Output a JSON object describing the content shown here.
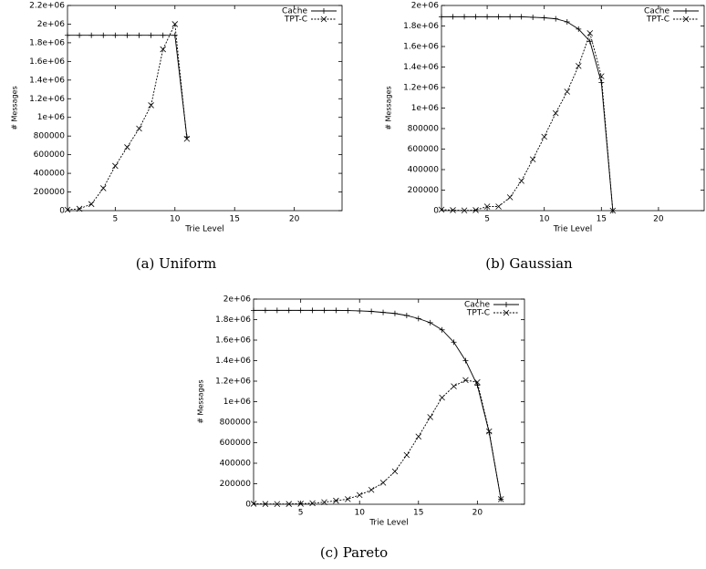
{
  "chart_data": [
    {
      "type": "line",
      "caption": "(a) Uniform",
      "x_label": "Trie Level",
      "y_label": "# Messages",
      "legend": "top-right",
      "x": [
        1,
        2,
        3,
        4,
        5,
        6,
        7,
        8,
        9,
        10,
        11
      ],
      "series": [
        {
          "name": "Cache",
          "color": "#000000",
          "values": [
            1880000,
            1880000,
            1880000,
            1880000,
            1880000,
            1880000,
            1880000,
            1880000,
            1880000,
            1880000,
            790000
          ]
        },
        {
          "name": "TPT-C",
          "color": "#000000",
          "values": [
            10000,
            20000,
            70000,
            240000,
            480000,
            680000,
            880000,
            1130000,
            1730000,
            2000000,
            770000
          ]
        }
      ],
      "xlim": [
        1,
        24
      ],
      "xticks": [
        5,
        10,
        15,
        20
      ],
      "ylim": [
        0,
        2200000
      ],
      "yticks": [
        0,
        200000,
        400000,
        600000,
        800000,
        {
          "value": 1000000,
          "label": "1e+06"
        },
        {
          "value": 1200000,
          "label": "1.2e+06"
        },
        {
          "value": 1400000,
          "label": "1.4e+06"
        },
        {
          "value": 1600000,
          "label": "1.6e+06"
        },
        {
          "value": 1800000,
          "label": "1.8e+06"
        },
        {
          "value": 2000000,
          "label": "2e+06"
        },
        {
          "value": 2200000,
          "label": "2.2e+06"
        }
      ]
    },
    {
      "type": "line",
      "caption": "(b) Gaussian",
      "x_label": "Trie Level",
      "y_label": "# Messages",
      "legend": "top-right",
      "x": [
        1,
        2,
        3,
        4,
        5,
        6,
        7,
        8,
        9,
        10,
        11,
        12,
        13,
        14,
        15,
        16
      ],
      "series": [
        {
          "name": "Cache",
          "color": "#000000",
          "values": [
            1890000,
            1890000,
            1890000,
            1890000,
            1890000,
            1890000,
            1890000,
            1890000,
            1885000,
            1880000,
            1870000,
            1840000,
            1770000,
            1650000,
            1250000,
            0
          ]
        },
        {
          "name": "TPT-C",
          "color": "#000000",
          "values": [
            10000,
            5000,
            2000,
            5000,
            40000,
            40000,
            130000,
            290000,
            500000,
            720000,
            950000,
            1160000,
            1410000,
            1730000,
            1310000,
            0
          ]
        }
      ],
      "xlim": [
        1,
        24
      ],
      "xticks": [
        5,
        10,
        15,
        20
      ],
      "ylim": [
        0,
        2000000
      ],
      "yticks": [
        0,
        200000,
        400000,
        600000,
        800000,
        {
          "value": 1000000,
          "label": "1e+06"
        },
        {
          "value": 1200000,
          "label": "1.2e+06"
        },
        {
          "value": 1400000,
          "label": "1.4e+06"
        },
        {
          "value": 1600000,
          "label": "1.6e+06"
        },
        {
          "value": 1800000,
          "label": "1.8e+06"
        },
        {
          "value": 2000000,
          "label": "2e+06"
        }
      ]
    },
    {
      "type": "line",
      "caption": "(c) Pareto",
      "x_label": "Trie Level",
      "y_label": "# Messages",
      "legend": "top-right",
      "x": [
        1,
        2,
        3,
        4,
        5,
        6,
        7,
        8,
        9,
        10,
        11,
        12,
        13,
        14,
        15,
        16,
        17,
        18,
        19,
        20,
        21,
        22
      ],
      "series": [
        {
          "name": "Cache",
          "color": "#000000",
          "values": [
            1890000,
            1890000,
            1890000,
            1890000,
            1890000,
            1890000,
            1890000,
            1890000,
            1888000,
            1885000,
            1880000,
            1870000,
            1860000,
            1840000,
            1810000,
            1770000,
            1700000,
            1580000,
            1400000,
            1160000,
            700000,
            50000
          ]
        },
        {
          "name": "TPT-C",
          "color": "#000000",
          "values": [
            5000,
            3000,
            2000,
            3000,
            5000,
            10000,
            20000,
            35000,
            50000,
            90000,
            140000,
            210000,
            320000,
            480000,
            660000,
            850000,
            1040000,
            1150000,
            1210000,
            1190000,
            710000,
            50000
          ]
        }
      ],
      "xlim": [
        1,
        24
      ],
      "xticks": [
        5,
        10,
        15,
        20
      ],
      "ylim": [
        0,
        2000000
      ],
      "yticks": [
        0,
        200000,
        400000,
        600000,
        800000,
        {
          "value": 1000000,
          "label": "1e+06"
        },
        {
          "value": 1200000,
          "label": "1.2e+06"
        },
        {
          "value": 1400000,
          "label": "1.4e+06"
        },
        {
          "value": 1600000,
          "label": "1.6e+06"
        },
        {
          "value": 1800000,
          "label": "1.8e+06"
        },
        {
          "value": 2000000,
          "label": "2e+06"
        }
      ]
    }
  ]
}
